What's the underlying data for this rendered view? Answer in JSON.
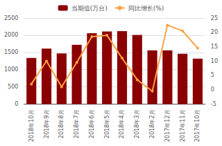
{
  "chart_data": {
    "type": "bar",
    "categories": [
      "2018年10月",
      "2018年9月",
      "2018年8月",
      "2018年7月",
      "2018年6月",
      "2018年5月",
      "2018年4月",
      "2018年3月",
      "2018年2月",
      "2017年12月",
      "2017年11月",
      "2017年10月"
    ],
    "series": [
      {
        "name": "当期值(万台)",
        "type": "bar",
        "color": "#8B0000",
        "values": [
          1340,
          1610,
          1470,
          1720,
          2060,
          2110,
          2120,
          2010,
          1560,
          1560,
          1460,
          1320
        ]
      },
      {
        "name": "同比增长(%)",
        "type": "line",
        "color": "#FFA040",
        "marker": "circle",
        "axis": "y2",
        "values": [
          2.0,
          10.0,
          1.0,
          9.5,
          18.5,
          19.0,
          11.0,
          3.5,
          -0.5,
          22.5,
          20.5,
          14.5
        ]
      }
    ],
    "ylim": [
      0,
      2500
    ],
    "yticks": [
      0,
      500,
      1000,
      1500,
      2000,
      2500
    ],
    "y2lim": [
      -5,
      25
    ],
    "y2ticks": [
      -5,
      0,
      5,
      10,
      15,
      20,
      25
    ],
    "grid": true,
    "legend": "top"
  }
}
